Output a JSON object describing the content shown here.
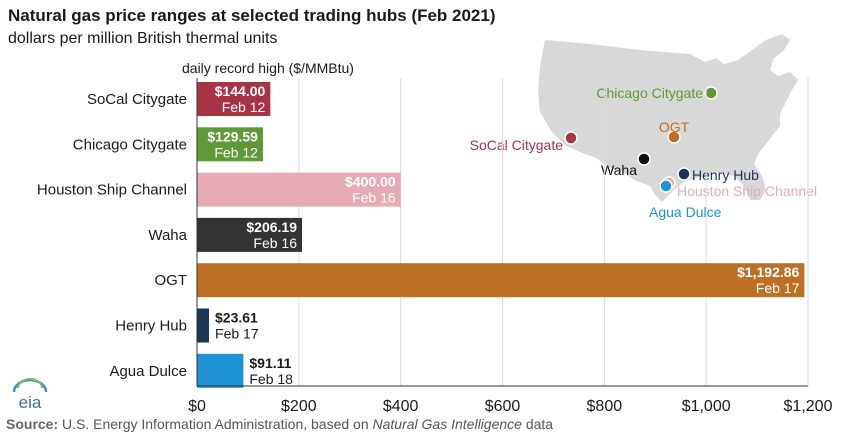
{
  "title": "Natural gas price ranges at selected trading hubs (Feb 2021)",
  "subtitle": "dollars per million British thermal units",
  "source": {
    "label": "Source:",
    "text_before": "U.S. Energy Information Administration, based on",
    "italic": "Natural Gas Intelligence",
    "text_after": "data"
  },
  "logo_text": "eia",
  "chart_data": {
    "type": "bar",
    "orientation": "horizontal",
    "value_header": "daily record high ($/MMBtu)",
    "categories": [
      "SoCal Citygate",
      "Chicago Citygate",
      "Houston Ship Channel",
      "Waha",
      "OGT",
      "Henry Hub",
      "Agua Dulce"
    ],
    "values": [
      144.0,
      129.59,
      400.0,
      206.19,
      1192.86,
      23.61,
      91.11
    ],
    "value_labels": [
      "$144.00",
      "$129.59",
      "$400.00",
      "$206.19",
      "$1,192.86",
      "$23.61",
      "$91.11"
    ],
    "dates": [
      "Feb 12",
      "Feb 12",
      "Feb 16",
      "Feb 16",
      "Feb 17",
      "Feb 17",
      "Feb 18"
    ],
    "labels_inside": [
      true,
      true,
      true,
      true,
      true,
      false,
      false
    ],
    "colors": [
      "#a73446",
      "#5f9a36",
      "#e6aab4",
      "#333333",
      "#bd7025",
      "#1b3554",
      "#1f92d4"
    ],
    "xlim": [
      0,
      1200
    ],
    "xticks": [
      0,
      200,
      400,
      600,
      800,
      1000,
      1200
    ],
    "xtick_labels": [
      "$0",
      "$200",
      "$400",
      "$600",
      "$800",
      "$1,000",
      "$1,200"
    ],
    "grid": "vertical"
  },
  "map": {
    "land_color": "#d8d8d8",
    "hubs": [
      {
        "name": "Chicago Citygate",
        "color": "#5f9a36"
      },
      {
        "name": "OGT",
        "color": "#bd7025"
      },
      {
        "name": "SoCal Citygate",
        "color": "#a73446"
      },
      {
        "name": "Waha",
        "color": "#111111"
      },
      {
        "name": "Henry Hub",
        "color": "#1b3554"
      },
      {
        "name": "Houston Ship Channel",
        "color": "#e6aab4"
      },
      {
        "name": "Agua Dulce",
        "color": "#1f92d4"
      }
    ]
  }
}
